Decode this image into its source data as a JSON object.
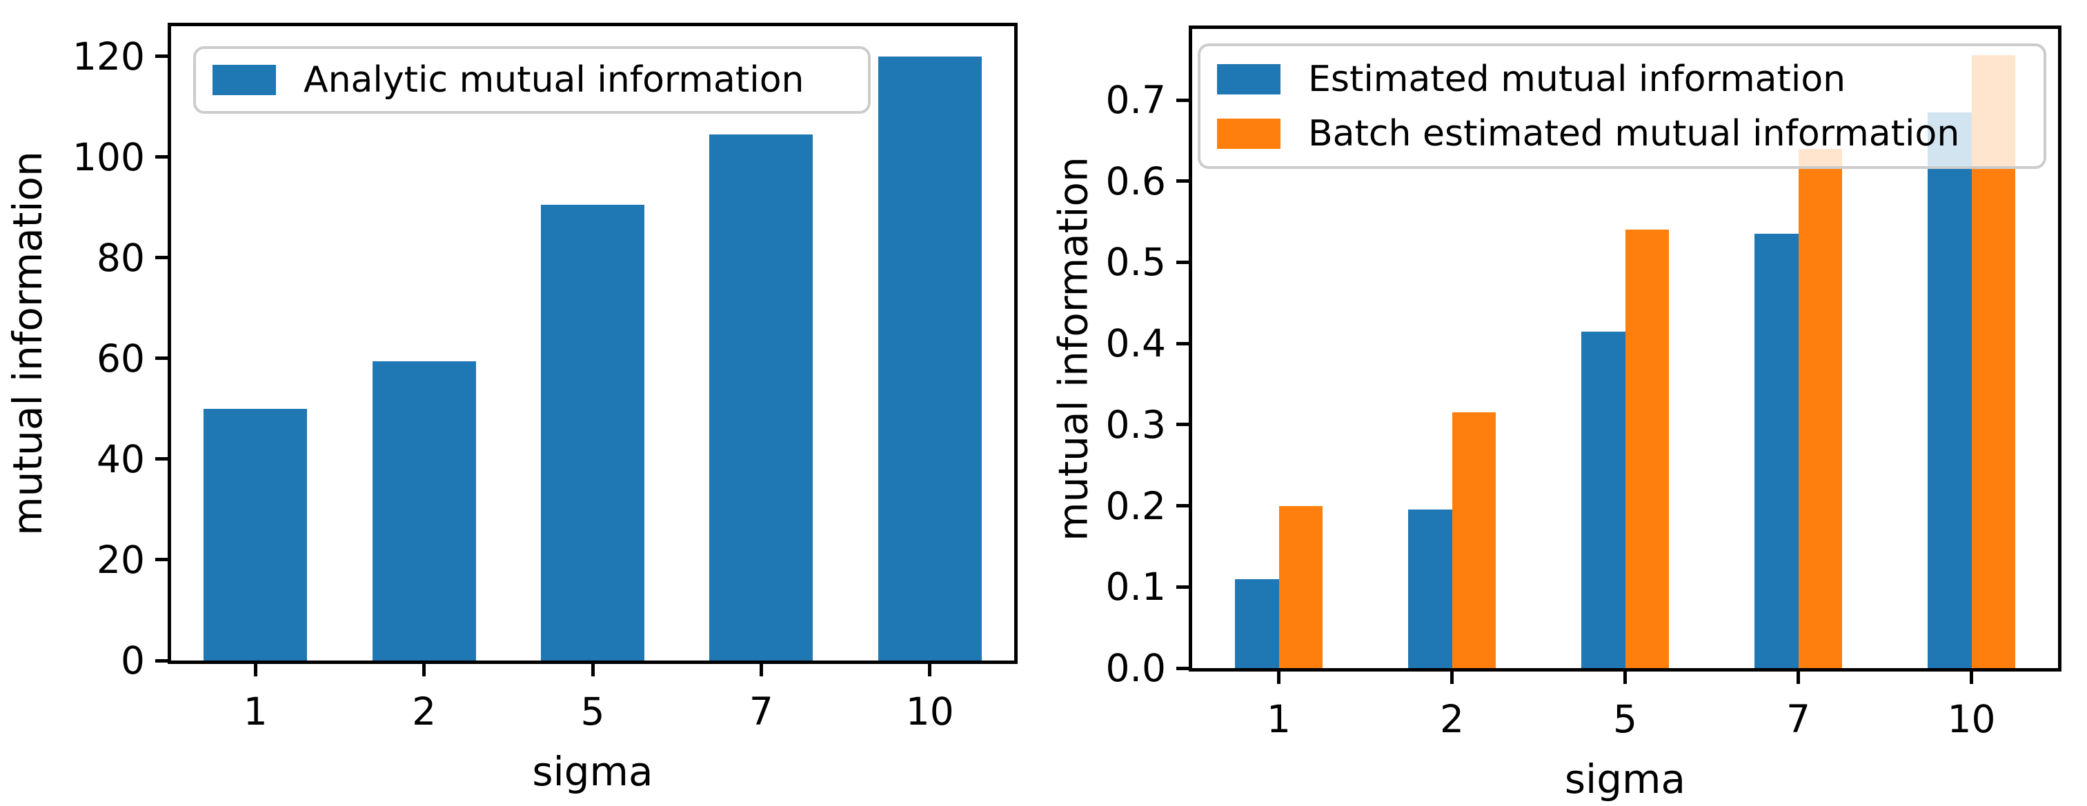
{
  "figure": {
    "background": "#ffffff"
  },
  "colors": {
    "blue": "#1f77b4",
    "orange": "#ff7f0e",
    "axis": "#000000",
    "text": "#000000",
    "legend_border": "#cccccc",
    "legend_background": "rgba(255,255,255,0.8)"
  },
  "chart_data": [
    {
      "type": "bar",
      "title": "",
      "xlabel": "sigma",
      "ylabel": "mutual information",
      "categories": [
        "1",
        "2",
        "5",
        "7",
        "10"
      ],
      "series": [
        {
          "name": "Analytic mutual information",
          "color_key": "blue",
          "values": [
            50,
            59.5,
            90.5,
            104.5,
            120
          ]
        }
      ],
      "ylim": [
        0,
        126
      ],
      "yticks": [
        0,
        20,
        40,
        60,
        80,
        100,
        120
      ],
      "ytick_labels": [
        "0",
        "20",
        "40",
        "60",
        "80",
        "100",
        "120"
      ],
      "grid": false,
      "legend_position": "upper left"
    },
    {
      "type": "bar",
      "title": "",
      "xlabel": "sigma",
      "ylabel": "mutual information",
      "categories": [
        "1",
        "2",
        "5",
        "7",
        "10"
      ],
      "series": [
        {
          "name": "Estimated mutual information",
          "color_key": "blue",
          "values": [
            0.11,
            0.195,
            0.415,
            0.535,
            0.685
          ]
        },
        {
          "name": "Batch estimated mutual information",
          "color_key": "orange",
          "values": [
            0.2,
            0.315,
            0.54,
            0.64,
            0.755
          ]
        }
      ],
      "ylim": [
        0,
        0.7875
      ],
      "yticks": [
        0.0,
        0.1,
        0.2,
        0.3,
        0.4,
        0.5,
        0.6,
        0.7
      ],
      "ytick_labels": [
        "0.0",
        "0.1",
        "0.2",
        "0.3",
        "0.4",
        "0.5",
        "0.6",
        "0.7"
      ],
      "grid": false,
      "legend_position": "upper left"
    }
  ]
}
